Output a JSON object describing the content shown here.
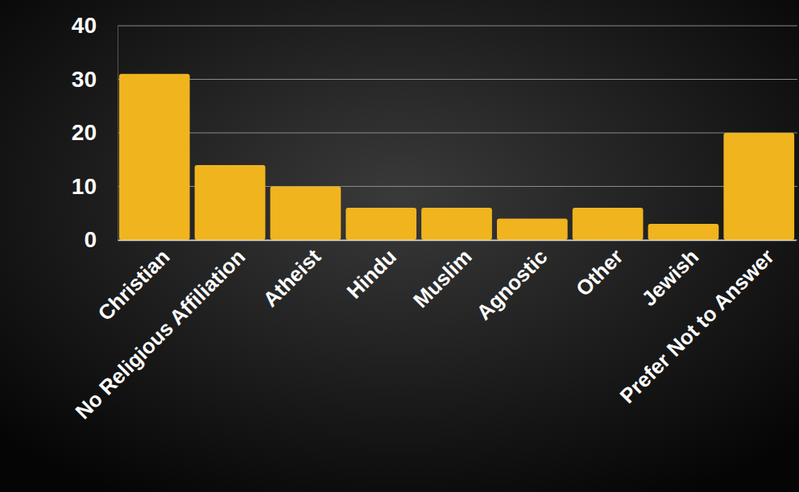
{
  "chart_data": {
    "type": "bar",
    "categories": [
      "Christian",
      "No Religious Affiliation",
      "Atheist",
      "Hindu",
      "Muslim",
      "Agnostic",
      "Other",
      "Jewish",
      "Prefer Not to Answer"
    ],
    "values": [
      31,
      14,
      10,
      6,
      6,
      4,
      6,
      3,
      20
    ],
    "color": "#f0b41e",
    "ylim": [
      0,
      40
    ],
    "yticks": [
      0,
      10,
      20,
      30,
      40
    ],
    "grid": true
  }
}
